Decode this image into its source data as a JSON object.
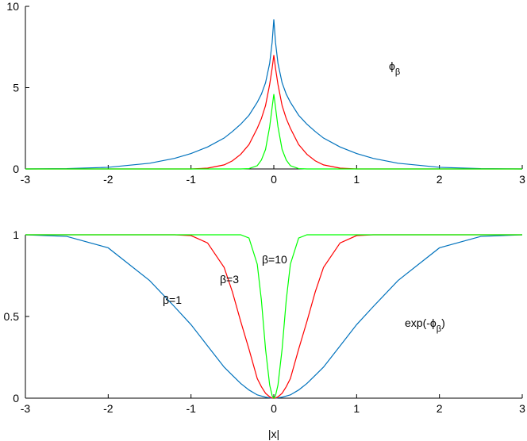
{
  "chart_data": [
    {
      "type": "line",
      "x": [
        -3,
        -2.5,
        -2,
        -1.5,
        -1.2,
        -1,
        -0.8,
        -0.6,
        -0.5,
        -0.4,
        -0.3,
        -0.2,
        -0.15,
        -0.1,
        -0.05,
        -0.02,
        0,
        0.02,
        0.05,
        0.1,
        0.15,
        0.2,
        0.3,
        0.4,
        0.5,
        0.6,
        0.8,
        1,
        1.2,
        1.5,
        2,
        2.5,
        3
      ],
      "series": [
        {
          "name": "β=1",
          "color": "#0072bd",
          "values": [
            0,
            0.02,
            0.1,
            0.35,
            0.65,
            0.95,
            1.35,
            1.9,
            2.3,
            2.75,
            3.3,
            4.1,
            4.6,
            5.3,
            6.5,
            7.8,
            9.2,
            7.8,
            6.5,
            5.3,
            4.6,
            4.1,
            3.3,
            2.75,
            2.3,
            1.9,
            1.35,
            0.95,
            0.65,
            0.35,
            0.1,
            0.02,
            0
          ]
        },
        {
          "name": "β=3",
          "color": "#ff0000",
          "values": [
            0,
            0,
            0,
            0,
            0,
            0,
            0.05,
            0.25,
            0.5,
            0.9,
            1.5,
            2.5,
            3.1,
            3.9,
            5.2,
            6.2,
            7,
            6.2,
            5.2,
            3.9,
            3.1,
            2.5,
            1.5,
            0.9,
            0.5,
            0.25,
            0.05,
            0,
            0,
            0,
            0,
            0,
            0
          ]
        },
        {
          "name": "β=10",
          "color": "#00ff00",
          "values": [
            0,
            0,
            0,
            0,
            0,
            0,
            0,
            0,
            0,
            0,
            0.02,
            0.2,
            0.55,
            1.2,
            2.6,
            3.8,
            4.6,
            3.8,
            2.6,
            1.2,
            0.55,
            0.2,
            0.02,
            0,
            0,
            0,
            0,
            0,
            0,
            0,
            0,
            0,
            0
          ]
        }
      ],
      "xlim": [
        -3,
        3
      ],
      "xticks": [
        -3,
        -2,
        -1,
        0,
        1,
        2,
        3
      ],
      "ylim": [
        0,
        10
      ],
      "yticks": [
        0,
        5,
        10
      ],
      "annotations": [
        {
          "parts": [
            "ϕ",
            "β"
          ]
        }
      ]
    },
    {
      "type": "line",
      "x": [
        -3,
        -2.5,
        -2,
        -1.5,
        -1.2,
        -1,
        -0.8,
        -0.6,
        -0.5,
        -0.4,
        -0.3,
        -0.2,
        -0.15,
        -0.1,
        -0.05,
        -0.02,
        0,
        0.02,
        0.05,
        0.1,
        0.15,
        0.2,
        0.3,
        0.4,
        0.5,
        0.6,
        0.8,
        1,
        1.2,
        1.5,
        2,
        2.5,
        3
      ],
      "series": [
        {
          "name": "β=1",
          "color": "#0072bd",
          "values": [
            1,
            0.99,
            0.92,
            0.72,
            0.56,
            0.45,
            0.32,
            0.19,
            0.14,
            0.09,
            0.05,
            0.02,
            0.013,
            0.006,
            0.002,
            0,
            0,
            0,
            0.002,
            0.006,
            0.013,
            0.02,
            0.05,
            0.09,
            0.14,
            0.19,
            0.32,
            0.45,
            0.56,
            0.72,
            0.92,
            0.99,
            1
          ]
        },
        {
          "name": "β=3",
          "color": "#ff0000",
          "values": [
            1,
            1,
            1,
            1,
            1,
            0.995,
            0.95,
            0.8,
            0.65,
            0.47,
            0.3,
            0.12,
            0.07,
            0.03,
            0.008,
            0.001,
            0,
            0.001,
            0.008,
            0.03,
            0.07,
            0.12,
            0.3,
            0.47,
            0.65,
            0.8,
            0.95,
            0.995,
            1,
            1,
            1,
            1,
            1
          ]
        },
        {
          "name": "β=10",
          "color": "#00ff00",
          "values": [
            1,
            1,
            1,
            1,
            1,
            1,
            1,
            1,
            1,
            1,
            0.98,
            0.82,
            0.6,
            0.3,
            0.08,
            0.015,
            0,
            0.015,
            0.08,
            0.3,
            0.6,
            0.82,
            0.98,
            1,
            1,
            1,
            1,
            1,
            1,
            1,
            1,
            1,
            1
          ]
        }
      ],
      "xlim": [
        -3,
        3
      ],
      "xticks": [
        -3,
        -2,
        -1,
        0,
        1,
        2,
        3
      ],
      "ylim": [
        0,
        1
      ],
      "yticks": [
        0,
        0.5,
        1
      ],
      "xlabel": "|x|",
      "annotations": [
        {
          "parts": [
            "exp(-ϕ",
            "β",
            ")"
          ]
        }
      ]
    }
  ]
}
